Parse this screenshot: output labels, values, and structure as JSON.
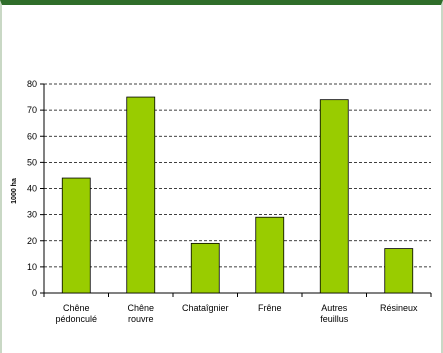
{
  "chart_data": {
    "type": "bar",
    "ylabel": "1000 ha",
    "categories": [
      [
        "Chêne",
        "pédonculé"
      ],
      [
        "Chêne",
        "rouvre"
      ],
      [
        "Chataîgnier"
      ],
      [
        "Frêne"
      ],
      [
        "Autres",
        "feuillus"
      ],
      [
        "Résineux"
      ]
    ],
    "values": [
      44,
      75,
      19,
      29,
      74,
      17
    ],
    "ylim": [
      0,
      80
    ],
    "yticks": [
      0,
      10,
      20,
      30,
      40,
      50,
      60,
      70,
      80
    ],
    "grid": true,
    "bar_color": "#99cc00"
  }
}
